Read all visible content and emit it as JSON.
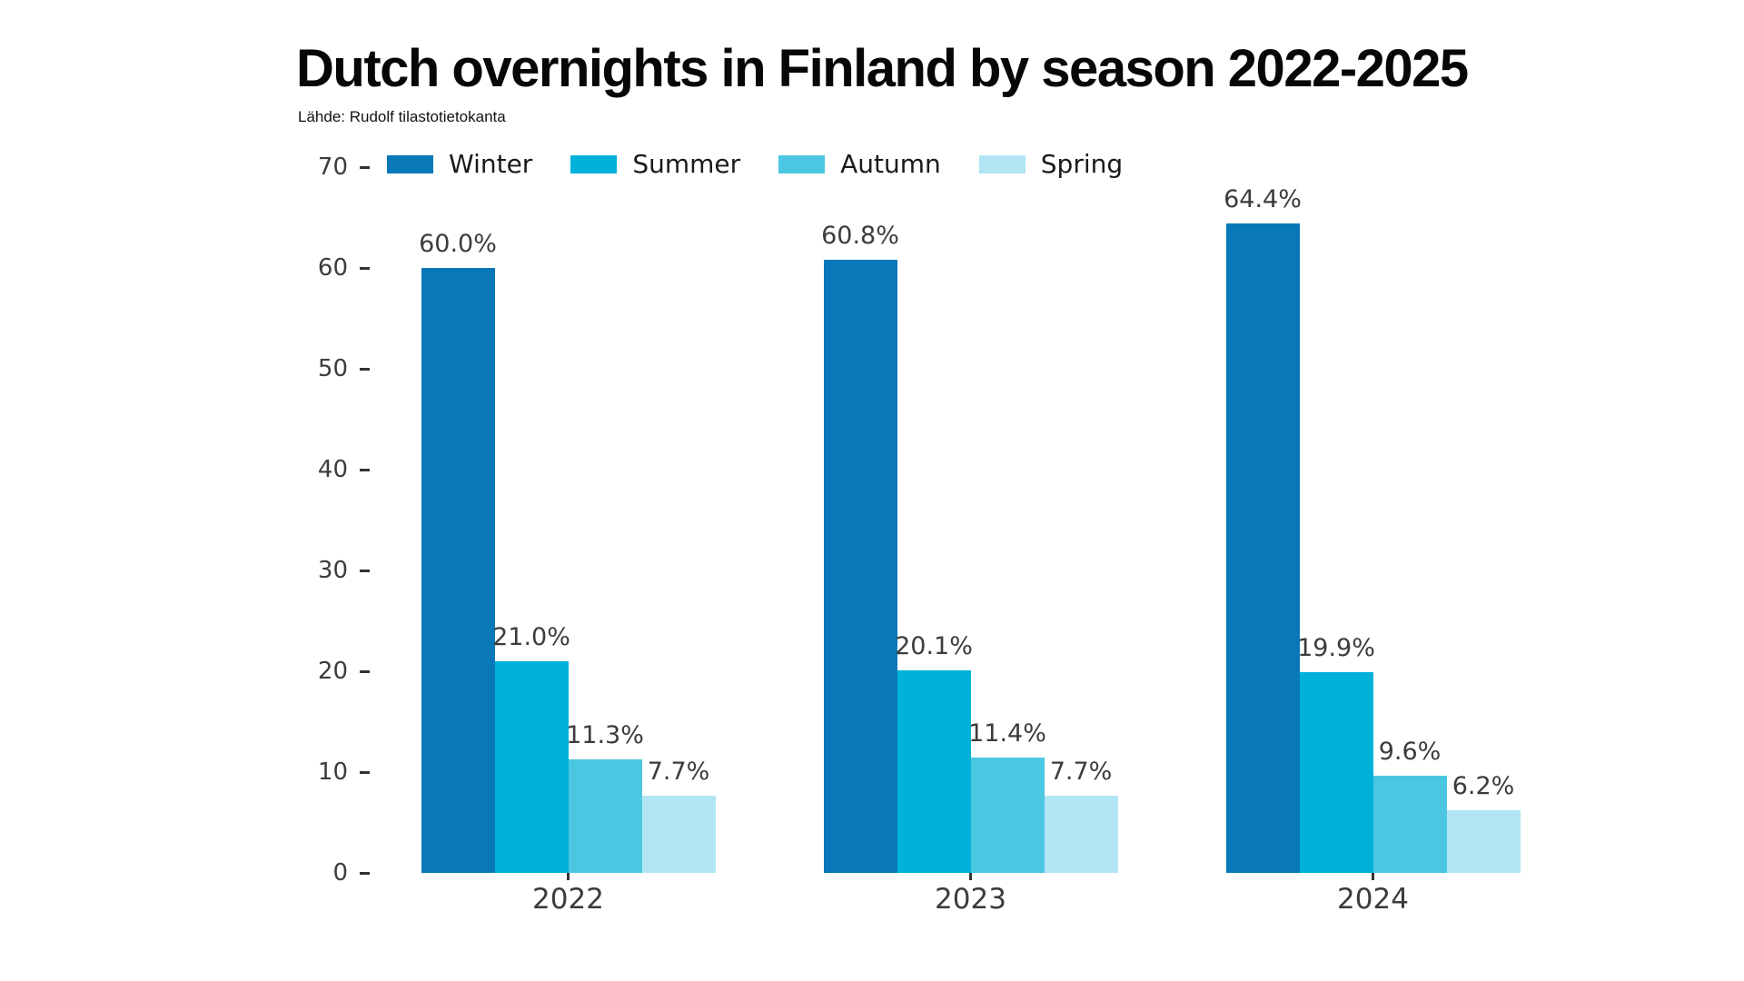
{
  "title": "Dutch overnights in Finland by season 2022-2025",
  "subtitle": "Lähde: Rudolf tilastotietokanta",
  "chart_data": {
    "type": "bar",
    "title": "Dutch overnights in Finland by season 2022-2025",
    "subtitle": "Lähde: Rudolf tilastotietokanta",
    "categories": [
      "2022",
      "2023",
      "2024"
    ],
    "series": [
      {
        "name": "Winter",
        "color": "#0878B8",
        "values": [
          60.0,
          60.8,
          64.4
        ],
        "labels": [
          "60.0%",
          "60.8%",
          "64.4%"
        ]
      },
      {
        "name": "Summer",
        "color": "#00B2D9",
        "values": [
          21.0,
          20.1,
          19.9
        ],
        "labels": [
          "21.0%",
          "20.1%",
          "19.9%"
        ]
      },
      {
        "name": "Autumn",
        "color": "#4BC7E2",
        "values": [
          11.3,
          11.4,
          9.6
        ],
        "labels": [
          "11.3%",
          "11.4%",
          "9.6%"
        ]
      },
      {
        "name": "Spring",
        "color": "#B2E5F3",
        "values": [
          7.7,
          7.7,
          6.2
        ],
        "labels": [
          "7.7%",
          "7.7%",
          "6.2%"
        ]
      }
    ],
    "xlabel": "",
    "ylabel": "",
    "ylim": [
      0,
      70
    ],
    "yticks": [
      0,
      10,
      20,
      30,
      40,
      50,
      60,
      70
    ],
    "grid": false,
    "legend_position": "top",
    "value_labels_shown": true
  },
  "colors": {
    "background": "#ffffff",
    "title_text": "#070707",
    "tick_text": "#3c3c3c",
    "legend_text": "#1a1a1a",
    "tick_mark": "#333333"
  }
}
